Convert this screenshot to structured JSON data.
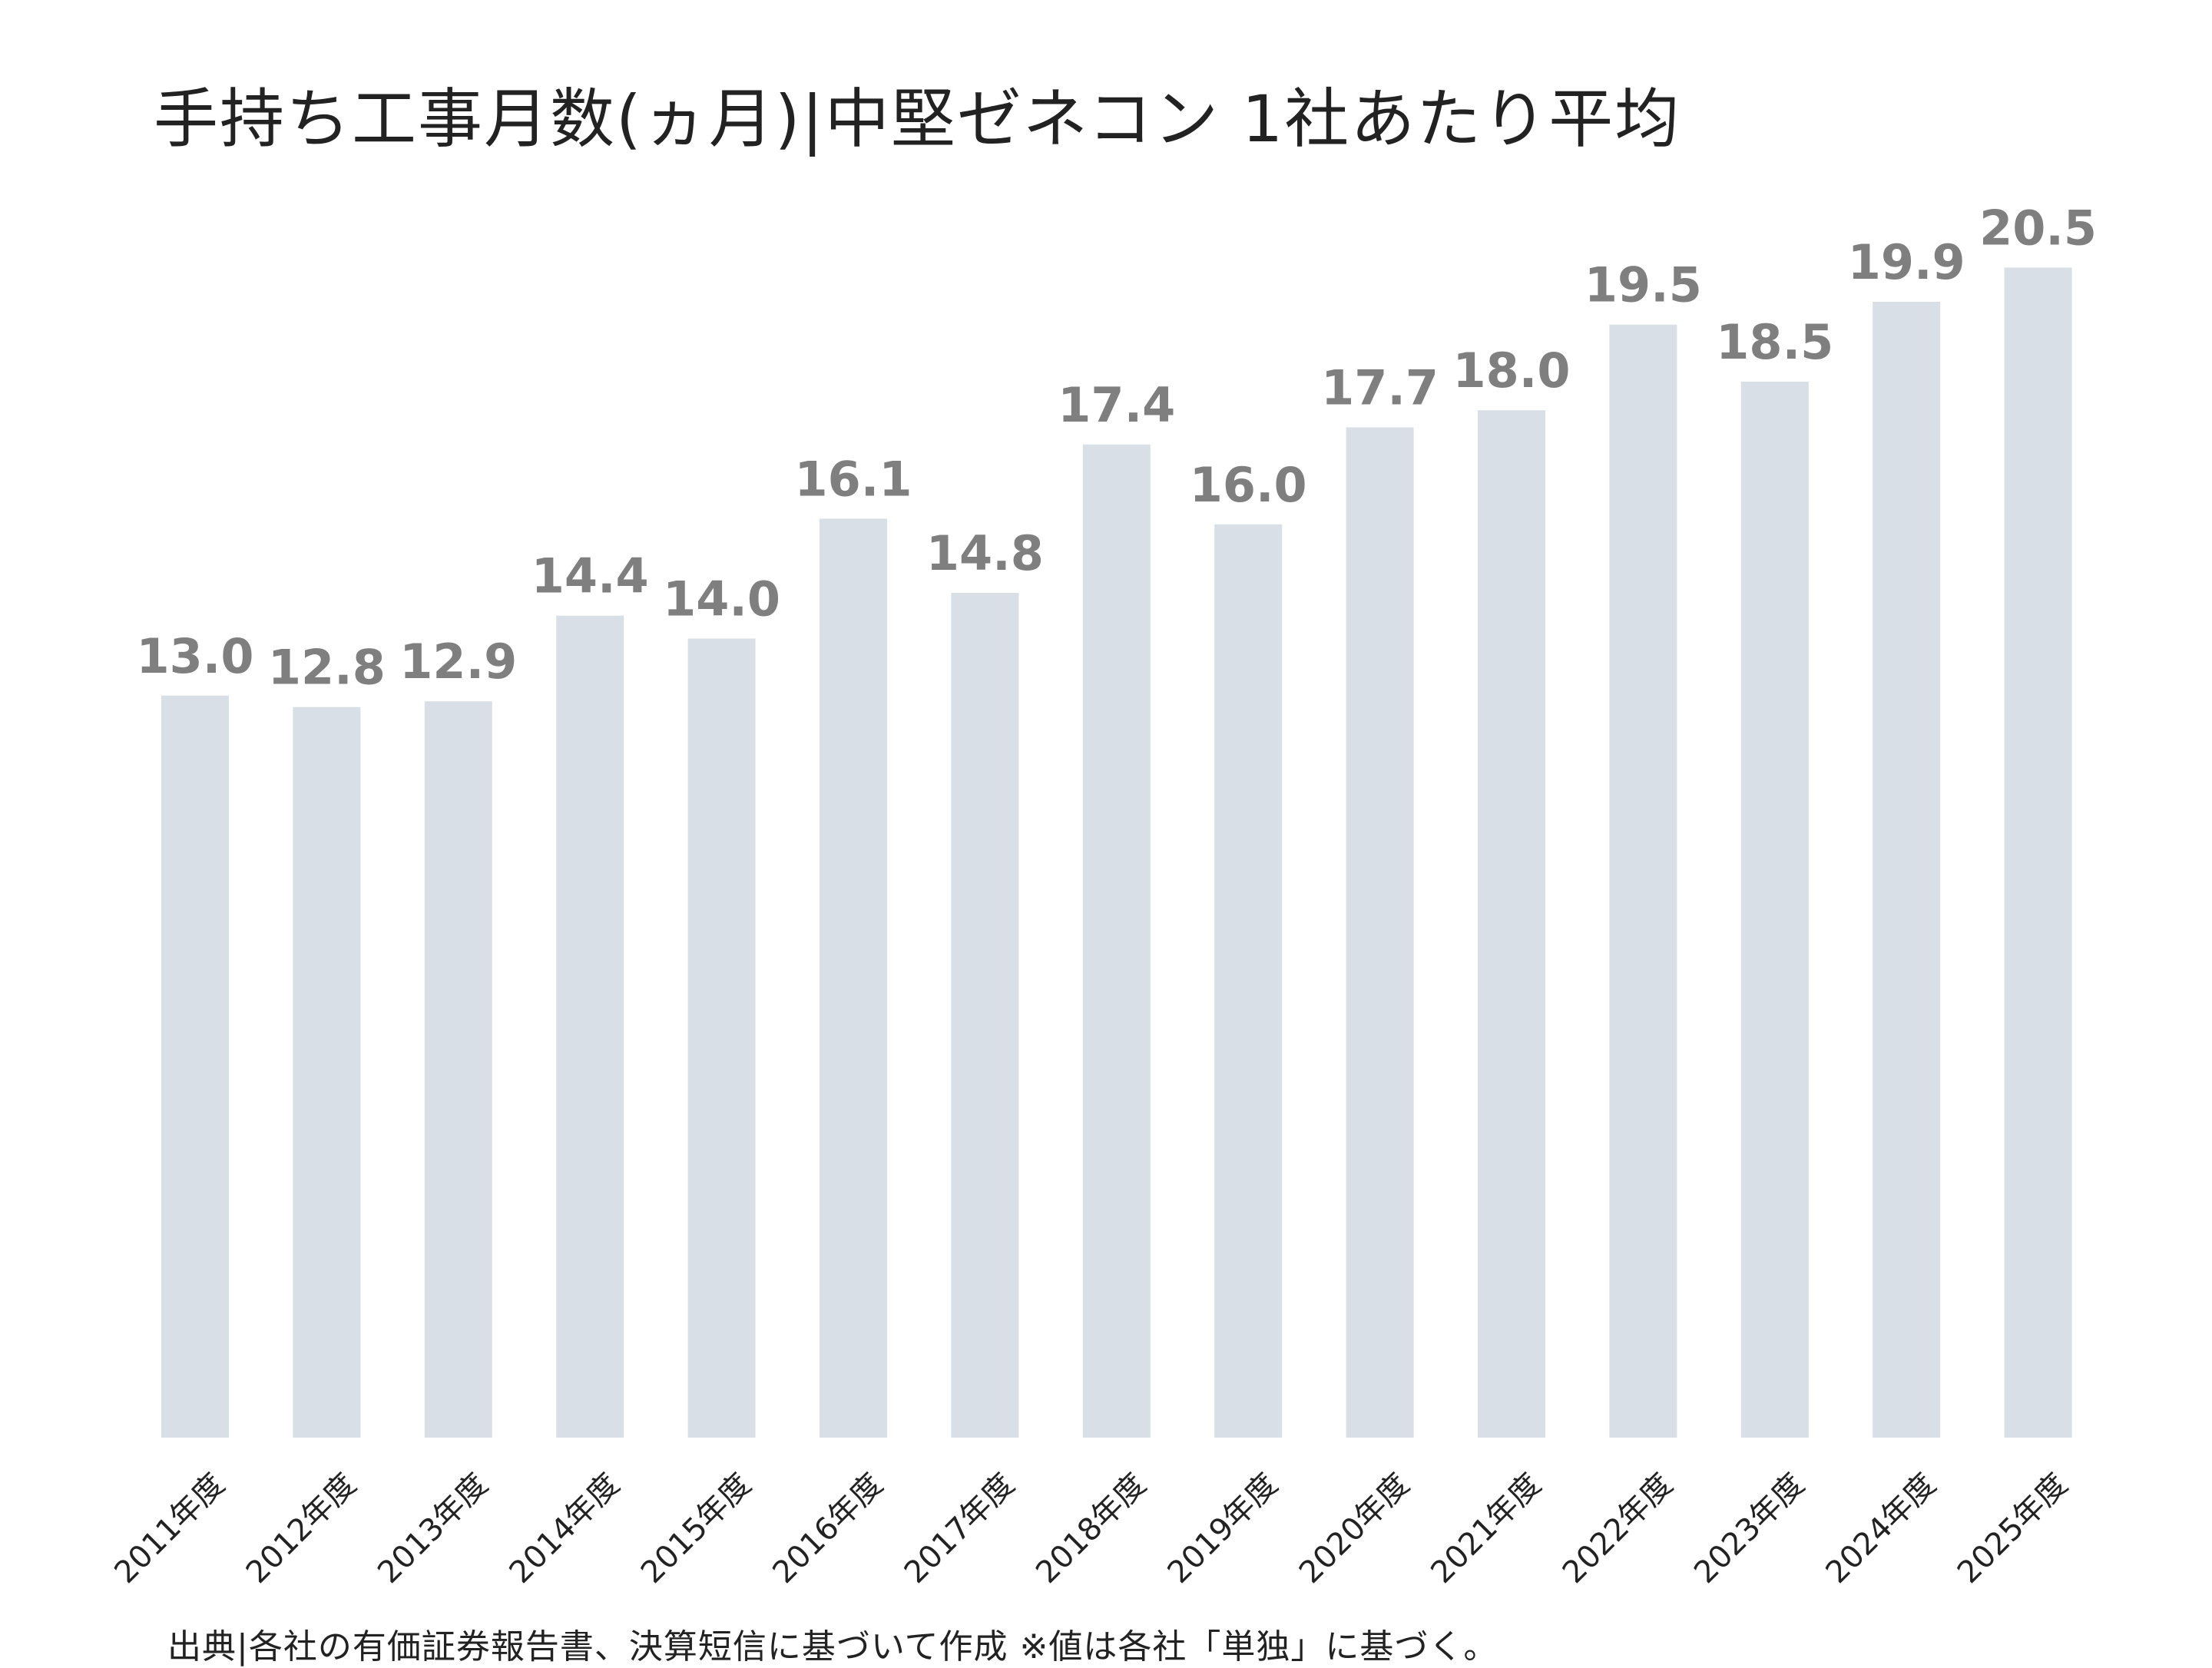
{
  "chart_data": {
    "type": "bar",
    "title": "手持ち工事月数(ヵ月)|中堅ゼネコン 1社あたり平均",
    "categories": [
      "2011年度",
      "2012年度",
      "2013年度",
      "2014年度",
      "2015年度",
      "2016年度",
      "2017年度",
      "2018年度",
      "2019年度",
      "2020年度",
      "2021年度",
      "2022年度",
      "2023年度",
      "2024年度",
      "2025年度"
    ],
    "values": [
      13.0,
      12.8,
      12.9,
      14.4,
      14.0,
      16.1,
      14.8,
      17.4,
      16.0,
      17.7,
      18.0,
      19.5,
      18.5,
      19.9,
      20.5
    ],
    "data_labels": [
      "13.0",
      "12.8",
      "12.9",
      "14.4",
      "14.0",
      "16.1",
      "14.8",
      "17.4",
      "16.0",
      "17.7",
      "18.0",
      "19.5",
      "18.5",
      "19.9",
      "20.5"
    ],
    "xlabel": "",
    "ylabel": "",
    "ylim": [
      0,
      22.9
    ],
    "grid": false,
    "legend": "none",
    "bar_color": "#d9dfe7",
    "label_color": "#7f7f7f"
  },
  "footer": {
    "source": "出典|各社の有価証券報告書、決算短信に基づいて作成 ※値は各社「単独」に基づく。"
  }
}
